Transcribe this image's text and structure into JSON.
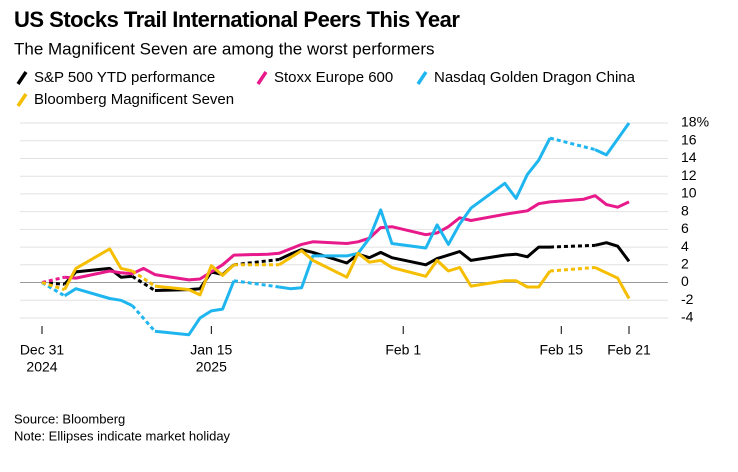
{
  "chart_data": {
    "type": "line",
    "title": "US Stocks Trail International Peers This Year",
    "subtitle": "The Magnificent Seven are among the worst performers",
    "source": "Source: Bloomberg",
    "note": "Note: Ellipses indicate market holiday",
    "x": [
      "2024-12-31",
      "2025-01-01",
      "2025-01-02",
      "2025-01-03",
      "2025-01-06",
      "2025-01-07",
      "2025-01-08",
      "2025-01-09",
      "2025-01-10",
      "2025-01-13",
      "2025-01-14",
      "2025-01-15",
      "2025-01-16",
      "2025-01-17",
      "2025-01-20",
      "2025-01-21",
      "2025-01-22",
      "2025-01-23",
      "2025-01-24",
      "2025-01-27",
      "2025-01-28",
      "2025-01-29",
      "2025-01-30",
      "2025-01-31",
      "2025-02-03",
      "2025-02-04",
      "2025-02-05",
      "2025-02-06",
      "2025-02-07",
      "2025-02-10",
      "2025-02-11",
      "2025-02-12",
      "2025-02-13",
      "2025-02-14",
      "2025-02-17",
      "2025-02-18",
      "2025-02-19",
      "2025-02-20",
      "2025-02-21"
    ],
    "xlim": [
      "2024-12-31",
      "2025-02-21"
    ],
    "xticks": [
      {
        "value": "2024-12-31",
        "label": "Dec 31",
        "year_label": "2024"
      },
      {
        "value": "2025-01-15",
        "label": "Jan 15",
        "year_label": "2025"
      },
      {
        "value": "2025-02-01",
        "label": "Feb 1"
      },
      {
        "value": "2025-02-15",
        "label": "Feb 15"
      },
      {
        "value": "2025-02-21",
        "label": "Feb 21"
      }
    ],
    "ylim": [
      -6,
      18.5
    ],
    "yticks": [
      {
        "value": 18,
        "label": "18%"
      },
      16,
      14,
      12,
      10,
      8,
      6,
      4,
      2,
      0,
      -2,
      -4
    ],
    "grid": true,
    "series": [
      {
        "name": "S&P 500 YTD performance",
        "color": "#000000",
        "values": [
          0,
          null,
          -0.2,
          1.2,
          1.6,
          0.6,
          0.7,
          null,
          -0.9,
          -0.8,
          -0.7,
          1.2,
          0.9,
          2.0,
          null,
          2.6,
          3.2,
          3.7,
          3.4,
          2.2,
          3.2,
          2.8,
          3.4,
          2.8,
          2.0,
          2.7,
          3.1,
          3.5,
          2.5,
          3.1,
          3.2,
          2.9,
          4.0,
          4.0,
          null,
          4.2,
          4.5,
          4.1,
          2.4
        ]
      },
      {
        "name": "Stoxx Europe 600",
        "color": "#e8198b",
        "values": [
          0,
          null,
          0.6,
          0.5,
          1.3,
          1.1,
          1.0,
          1.6,
          0.9,
          0.3,
          0.4,
          1.2,
          2.0,
          3.1,
          3.2,
          3.3,
          3.8,
          4.3,
          4.6,
          4.4,
          4.6,
          5.0,
          6.2,
          6.3,
          5.4,
          5.6,
          6.3,
          7.3,
          7.0,
          7.7,
          7.9,
          8.1,
          8.9,
          9.1,
          9.4,
          9.8,
          8.8,
          8.5,
          9.1
        ]
      },
      {
        "name": "Nasdaq Golden Dragon China",
        "color": "#1fb6f0",
        "values": [
          0,
          null,
          -1.5,
          -0.7,
          -1.8,
          -2.0,
          -2.6,
          null,
          -5.5,
          -5.9,
          -4.0,
          -3.2,
          -3.0,
          0.2,
          null,
          -0.5,
          -0.7,
          -0.6,
          3.0,
          3.0,
          3.3,
          5.0,
          8.2,
          4.4,
          3.9,
          6.5,
          4.3,
          6.6,
          8.4,
          11.2,
          9.5,
          12.2,
          13.8,
          16.3,
          null,
          15.0,
          14.4,
          16.2,
          18.0
        ]
      },
      {
        "name": "Bloomberg Magnificent Seven",
        "color": "#f5be00",
        "values": [
          0,
          null,
          -0.8,
          1.6,
          3.8,
          1.6,
          1.3,
          null,
          -0.4,
          -0.8,
          -1.4,
          1.9,
          0.8,
          2.0,
          null,
          2.0,
          2.8,
          3.6,
          2.5,
          0.6,
          3.3,
          2.3,
          2.5,
          1.7,
          0.7,
          2.5,
          1.3,
          1.7,
          -0.4,
          0.2,
          0.2,
          -0.5,
          -0.5,
          1.3,
          null,
          1.7,
          1.1,
          0.5,
          -1.8
        ]
      }
    ]
  }
}
